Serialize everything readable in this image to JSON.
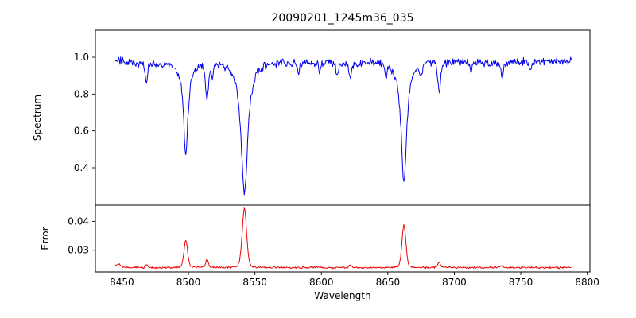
{
  "figure": {
    "title": "20090201_1245m36_035",
    "xlabel": "Wavelength",
    "background": "#ffffff",
    "xticks": [
      8450,
      8500,
      8550,
      8600,
      8650,
      8700,
      8750,
      8800
    ],
    "xtick_labels": [
      "8450",
      "8500",
      "8550",
      "8600",
      "8650",
      "8700",
      "8750",
      "8800"
    ]
  },
  "chart_data": [
    {
      "type": "line",
      "name": "spectrum",
      "ylabel": "Spectrum",
      "color": "#0000ee",
      "grid": false,
      "legend": false,
      "x_start": 8445,
      "x_end": 8788,
      "x_step": 0.5,
      "xlim": [
        8430,
        8802
      ],
      "ylim": [
        0.197,
        1.147
      ],
      "yticks": [
        0.4,
        0.6,
        0.8,
        1.0
      ],
      "ytick_labels": [
        "0.4",
        "0.6",
        "0.8",
        "1.0"
      ],
      "continuum": 0.975,
      "noise_amplitude": 0.026,
      "absorption_lines": [
        {
          "center": 8498.0,
          "depth": 0.5,
          "width": 2.0,
          "profile": "lorentzian"
        },
        {
          "center": 8542.1,
          "depth": 0.72,
          "width": 3.0,
          "profile": "lorentzian"
        },
        {
          "center": 8662.1,
          "depth": 0.655,
          "width": 2.5,
          "profile": "lorentzian"
        },
        {
          "center": 8440.4,
          "depth": 0.11,
          "width": 1.0,
          "profile": "gaussian"
        },
        {
          "center": 8468.4,
          "depth": 0.09,
          "width": 0.9,
          "profile": "gaussian"
        },
        {
          "center": 8514.1,
          "depth": 0.19,
          "width": 1.1,
          "profile": "gaussian"
        },
        {
          "center": 8518.0,
          "depth": 0.07,
          "width": 0.8,
          "profile": "gaussian"
        },
        {
          "center": 8582.6,
          "depth": 0.05,
          "width": 0.8,
          "profile": "gaussian"
        },
        {
          "center": 8598.8,
          "depth": 0.05,
          "width": 0.8,
          "profile": "gaussian"
        },
        {
          "center": 8611.8,
          "depth": 0.06,
          "width": 0.9,
          "profile": "gaussian"
        },
        {
          "center": 8621.7,
          "depth": 0.08,
          "width": 0.9,
          "profile": "gaussian"
        },
        {
          "center": 8648.5,
          "depth": 0.06,
          "width": 0.8,
          "profile": "gaussian"
        },
        {
          "center": 8674.8,
          "depth": 0.07,
          "width": 0.9,
          "profile": "gaussian"
        },
        {
          "center": 8688.6,
          "depth": 0.16,
          "width": 1.1,
          "profile": "gaussian"
        },
        {
          "center": 8712.7,
          "depth": 0.05,
          "width": 0.8,
          "profile": "gaussian"
        },
        {
          "center": 8736.0,
          "depth": 0.07,
          "width": 0.9,
          "profile": "gaussian"
        },
        {
          "center": 8757.2,
          "depth": 0.05,
          "width": 0.8,
          "profile": "gaussian"
        }
      ]
    },
    {
      "type": "line",
      "name": "error",
      "ylabel": "Error",
      "color": "#ee0000",
      "grid": false,
      "legend": false,
      "xlim": [
        8430,
        8802
      ],
      "ylim": [
        0.0225,
        0.0456
      ],
      "yticks": [
        0.03,
        0.04
      ],
      "ytick_labels": [
        "0.03",
        "0.04"
      ],
      "baseline": 0.024,
      "noise_amplitude": 0.0004,
      "peaks": [
        {
          "center": 8447.0,
          "height": 0.0012,
          "width": 2.0
        },
        {
          "center": 8440.4,
          "height": 0.0016,
          "width": 1.0
        },
        {
          "center": 8468.4,
          "height": 0.0012,
          "width": 0.9
        },
        {
          "center": 8498.0,
          "height": 0.0095,
          "width": 1.4
        },
        {
          "center": 8514.1,
          "height": 0.0028,
          "width": 1.0
        },
        {
          "center": 8542.1,
          "height": 0.0205,
          "width": 1.7
        },
        {
          "center": 8621.7,
          "height": 0.001,
          "width": 0.9
        },
        {
          "center": 8662.1,
          "height": 0.0148,
          "width": 1.5
        },
        {
          "center": 8688.6,
          "height": 0.0018,
          "width": 1.0
        },
        {
          "center": 8736.0,
          "height": 0.0008,
          "width": 0.9
        }
      ]
    }
  ]
}
